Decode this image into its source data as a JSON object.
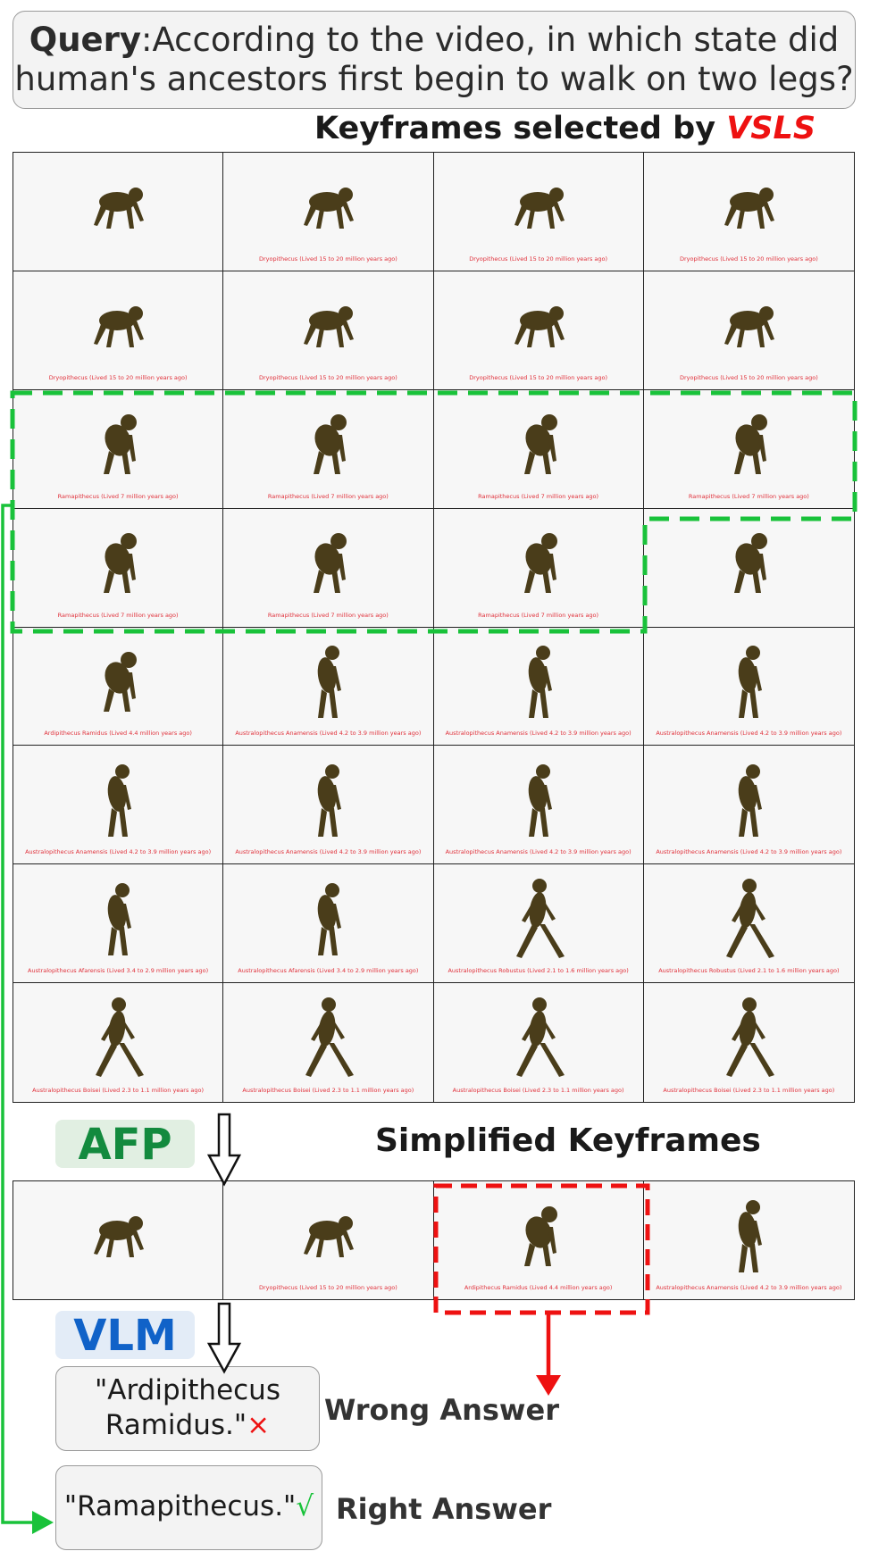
{
  "query": {
    "label": "Query",
    "separator": ":",
    "line1_rest": "According to the video, in which state did",
    "line2": "human's ancestors first begin to walk on two legs?"
  },
  "keyframes_heading": {
    "prefix": "Keyframes selected by ",
    "method": "VSLS"
  },
  "keyframes": [
    {
      "caption": "",
      "pose": "quad"
    },
    {
      "caption": "Dryopithecus (Lived 15 to 20 million years ago)",
      "pose": "quad"
    },
    {
      "caption": "Dryopithecus (Lived 15 to 20 million years ago)",
      "pose": "quad"
    },
    {
      "caption": "Dryopithecus (Lived 15 to 20 million years ago)",
      "pose": "quad"
    },
    {
      "caption": "Dryopithecus (Lived 15 to 20 million years ago)",
      "pose": "quad"
    },
    {
      "caption": "Dryopithecus (Lived 15 to 20 million years ago)",
      "pose": "quad"
    },
    {
      "caption": "Dryopithecus (Lived 15 to 20 million years ago)",
      "pose": "quad"
    },
    {
      "caption": "Dryopithecus (Lived 15 to 20 million years ago)",
      "pose": "quad"
    },
    {
      "caption": "Ramapithecus (Lived 7 million years ago)",
      "pose": "crouch"
    },
    {
      "caption": "Ramapithecus (Lived 7 million years ago)",
      "pose": "crouch"
    },
    {
      "caption": "Ramapithecus (Lived 7 million years ago)",
      "pose": "crouch"
    },
    {
      "caption": "Ramapithecus (Lived 7 million years ago)",
      "pose": "crouch"
    },
    {
      "caption": "Ramapithecus (Lived 7 million years ago)",
      "pose": "crouch"
    },
    {
      "caption": "Ramapithecus (Lived 7 million years ago)",
      "pose": "crouch"
    },
    {
      "caption": "Ramapithecus (Lived 7 million years ago)",
      "pose": "crouch"
    },
    {
      "caption": "",
      "pose": "crouch"
    },
    {
      "caption": "Ardipithecus Ramidus (Lived 4.4 million years ago)",
      "pose": "crouch"
    },
    {
      "caption": "Australopithecus Anamensis (Lived 4.2 to 3.9 million years ago)",
      "pose": "stand"
    },
    {
      "caption": "Australopithecus Anamensis (Lived 4.2 to 3.9 million years ago)",
      "pose": "stand"
    },
    {
      "caption": "Australopithecus Anamensis (Lived 4.2 to 3.9 million years ago)",
      "pose": "stand"
    },
    {
      "caption": "Australopithecus Anamensis (Lived 4.2 to 3.9 million years ago)",
      "pose": "stand"
    },
    {
      "caption": "Australopithecus Anamensis (Lived 4.2 to 3.9 million years ago)",
      "pose": "stand"
    },
    {
      "caption": "Australopithecus Anamensis (Lived 4.2 to 3.9 million years ago)",
      "pose": "stand"
    },
    {
      "caption": "Australopithecus Anamensis (Lived 4.2 to 3.9 million years ago)",
      "pose": "stand"
    },
    {
      "caption": "Australopithecus Afarensis (Lived 3.4 to 2.9 million years ago)",
      "pose": "stand"
    },
    {
      "caption": "Australopithecus Afarensis (Lived 3.4 to 2.9 million years ago)",
      "pose": "stand"
    },
    {
      "caption": "Australopithecus Robustus (Lived 2.1 to 1.6 million years ago)",
      "pose": "walk"
    },
    {
      "caption": "Australopithecus Robustus (Lived 2.1 to 1.6 million years ago)",
      "pose": "walk"
    },
    {
      "caption": "Australopithecus Boisei (Lived 2.3 to 1.1 million years ago)",
      "pose": "walk"
    },
    {
      "caption": "Australopithecus Boisei (Lived 2.3 to 1.1 million years ago)",
      "pose": "walk"
    },
    {
      "caption": "Australopithecus Boisei (Lived 2.3 to 1.1 million years ago)",
      "pose": "walk"
    },
    {
      "caption": "Australopithecus Boisei (Lived 2.3 to 1.1 million years ago)",
      "pose": "walk"
    }
  ],
  "afp_label": "AFP",
  "simplified_heading": "Simplified Keyframes",
  "simplified_keyframes": [
    {
      "caption": "",
      "pose": "quad"
    },
    {
      "caption": "Dryopithecus (Lived 15 to 20 million years ago)",
      "pose": "quad"
    },
    {
      "caption": "Ardipithecus Ramidus (Lived 4.4 million years ago)",
      "pose": "crouch"
    },
    {
      "caption": "Australopithecus Anamensis (Lived 4.2 to 3.9 million years ago)",
      "pose": "stand"
    }
  ],
  "vlm_label": "VLM",
  "wrong_answer": {
    "line1": "\"Ardipithecus",
    "line2": "Ramidus.\"",
    "mark": "×",
    "verdict": "Wrong Answer"
  },
  "right_answer": {
    "text": "\"Ramapithecus.\"",
    "mark": "√",
    "verdict": "Right Answer"
  },
  "colors": {
    "figure": "#4a3d1a",
    "caption": "#e0303a",
    "green_dash": "#19c23a",
    "red_dash": "#ee1111",
    "vsls": "#ee1111",
    "afp_text": "#138a3e",
    "vlm_text": "#1062c8"
  }
}
